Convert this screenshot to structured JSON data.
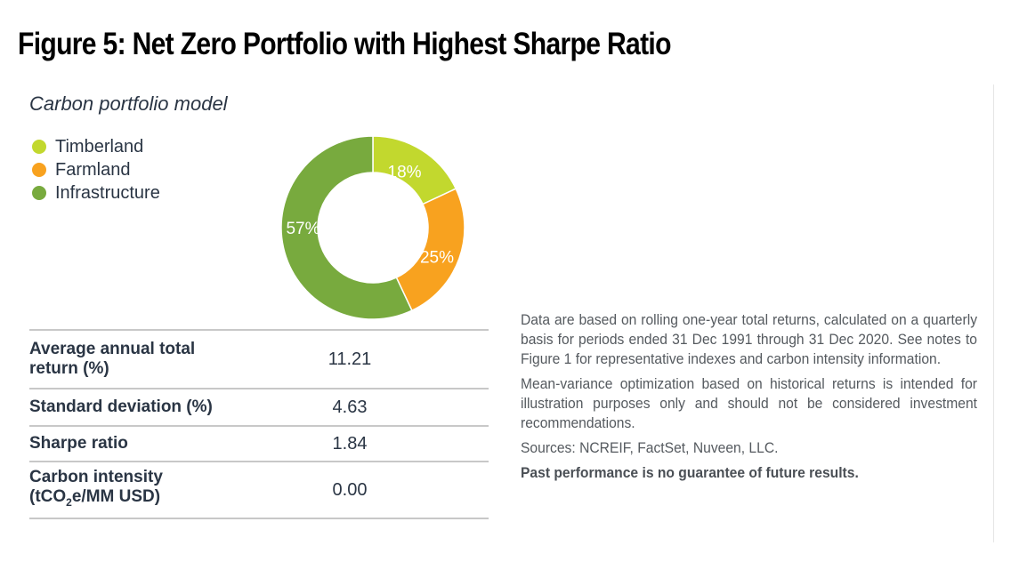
{
  "figure": {
    "title": "Figure 5: Net Zero Portfolio with Highest Sharpe Ratio"
  },
  "chart_data": {
    "type": "pie",
    "variant": "donut",
    "title": "Carbon portfolio model",
    "categories": [
      "Timberland",
      "Farmland",
      "Infrastructure"
    ],
    "values": [
      18,
      25,
      57
    ],
    "labels": [
      "18%",
      "25%",
      "57%"
    ],
    "colors": [
      "#c2d82e",
      "#f8a21f",
      "#78aa3e"
    ],
    "legend": {
      "position": "top-left",
      "entries": [
        "Timberland",
        "Farmland",
        "Infrastructure"
      ]
    },
    "start": "top, clockwise"
  },
  "stats_table": {
    "rows": [
      {
        "label_line1": "Average annual total",
        "label_line2": "return (%)",
        "value": "11.21"
      },
      {
        "label_line1": "Standard deviation (%)",
        "label_line2": "",
        "value": "4.63"
      },
      {
        "label_line1": "Sharpe ratio",
        "label_line2": "",
        "value": "1.84"
      },
      {
        "label_line1": "Carbon intensity",
        "label_line2_pre": "(tCO",
        "label_line2_sub": "2",
        "label_line2_post": "e/MM USD)",
        "value": "0.00"
      }
    ]
  },
  "notes": {
    "paragraphs": [
      "Data are based on rolling one-year total returns, calculated on a quarterly basis for periods ended 31 Dec 1991 through 31 Dec 2020. See notes to Figure 1 for representative indexes and carbon intensity information.",
      "Mean-variance optimization based on historical returns is intended for illustration purposes only and should not be considered investment recommendations.",
      "Sources: NCREIF, FactSet, Nuveen, LLC."
    ],
    "disclaimer": "Past performance is no guarantee of future results."
  }
}
